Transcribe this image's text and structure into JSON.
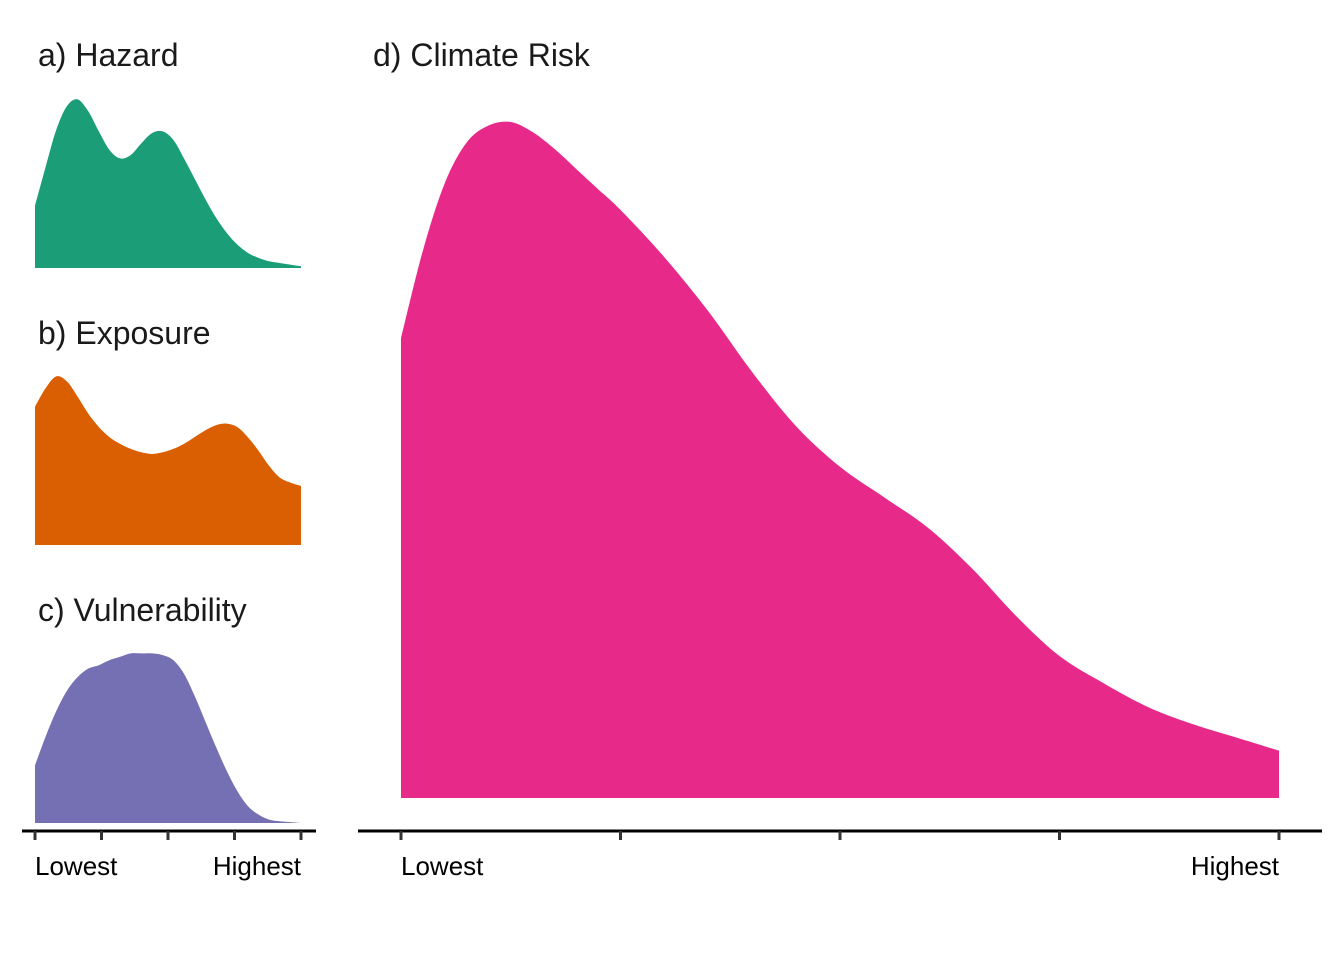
{
  "chart_data": [
    {
      "panel": "a",
      "type": "area",
      "title": "a) Hazard",
      "color": "#1b9e77",
      "x": [
        0,
        0.04,
        0.08,
        0.12,
        0.16,
        0.2,
        0.24,
        0.28,
        0.32,
        0.36,
        0.4,
        0.44,
        0.48,
        0.52,
        0.56,
        0.6,
        0.64,
        0.68,
        0.72,
        0.76,
        0.8,
        0.84,
        0.88,
        0.92,
        0.96,
        1.0
      ],
      "y": [
        0.37,
        0.6,
        0.82,
        0.96,
        1.0,
        0.93,
        0.81,
        0.7,
        0.65,
        0.67,
        0.74,
        0.8,
        0.81,
        0.76,
        0.65,
        0.53,
        0.41,
        0.3,
        0.21,
        0.14,
        0.09,
        0.06,
        0.04,
        0.03,
        0.02,
        0.01
      ],
      "xlim": [
        0,
        1
      ],
      "ylim": [
        0,
        1.02
      ]
    },
    {
      "panel": "b",
      "type": "area",
      "title": "b) Exposure",
      "color": "#d95f02",
      "x": [
        0,
        0.04,
        0.08,
        0.12,
        0.16,
        0.2,
        0.24,
        0.28,
        0.32,
        0.36,
        0.4,
        0.44,
        0.48,
        0.52,
        0.56,
        0.6,
        0.64,
        0.68,
        0.72,
        0.76,
        0.8,
        0.84,
        0.88,
        0.92,
        0.96,
        1.0
      ],
      "y": [
        0.82,
        0.93,
        1.0,
        0.97,
        0.88,
        0.78,
        0.7,
        0.64,
        0.6,
        0.57,
        0.55,
        0.54,
        0.55,
        0.57,
        0.6,
        0.64,
        0.68,
        0.71,
        0.72,
        0.7,
        0.64,
        0.56,
        0.47,
        0.4,
        0.37,
        0.35
      ],
      "xlim": [
        0,
        1
      ],
      "ylim": [
        0,
        1.02
      ]
    },
    {
      "panel": "c",
      "type": "area",
      "title": "c) Vulnerability",
      "color": "#7570b3",
      "x": [
        0,
        0.04,
        0.08,
        0.12,
        0.16,
        0.2,
        0.24,
        0.28,
        0.32,
        0.36,
        0.4,
        0.44,
        0.48,
        0.52,
        0.56,
        0.6,
        0.64,
        0.68,
        0.72,
        0.76,
        0.8,
        0.84,
        0.88,
        0.92,
        0.96,
        1.0
      ],
      "y": [
        0.34,
        0.51,
        0.66,
        0.78,
        0.86,
        0.91,
        0.93,
        0.96,
        0.98,
        1.0,
        1.0,
        1.0,
        0.99,
        0.96,
        0.88,
        0.75,
        0.6,
        0.45,
        0.31,
        0.19,
        0.1,
        0.05,
        0.02,
        0.01,
        0.005,
        0.0
      ],
      "xlim": [
        0,
        1
      ],
      "ylim": [
        0,
        1.02
      ],
      "x_tick_positions": [
        0,
        0.25,
        0.5,
        0.75,
        1.0
      ],
      "x_tick_labels": [
        "Lowest",
        "Highest"
      ]
    },
    {
      "panel": "d",
      "type": "area",
      "title": "d) Climate Risk",
      "color": "#e7298a",
      "x": [
        0,
        0.025,
        0.05,
        0.075,
        0.1,
        0.125,
        0.15,
        0.175,
        0.2,
        0.225,
        0.25,
        0.3,
        0.35,
        0.4,
        0.45,
        0.5,
        0.55,
        0.6,
        0.65,
        0.7,
        0.75,
        0.8,
        0.85,
        0.9,
        0.95,
        1.0
      ],
      "y": [
        0.68,
        0.81,
        0.91,
        0.97,
        0.995,
        1.0,
        0.985,
        0.96,
        0.93,
        0.9,
        0.87,
        0.8,
        0.72,
        0.63,
        0.55,
        0.49,
        0.445,
        0.4,
        0.34,
        0.27,
        0.21,
        0.17,
        0.135,
        0.11,
        0.09,
        0.07
      ],
      "xlim": [
        0,
        1
      ],
      "ylim": [
        0,
        1.0
      ],
      "x_tick_positions": [
        0,
        0.25,
        0.5,
        0.75,
        1.0
      ],
      "x_tick_labels": [
        "Lowest",
        "Highest"
      ]
    }
  ]
}
